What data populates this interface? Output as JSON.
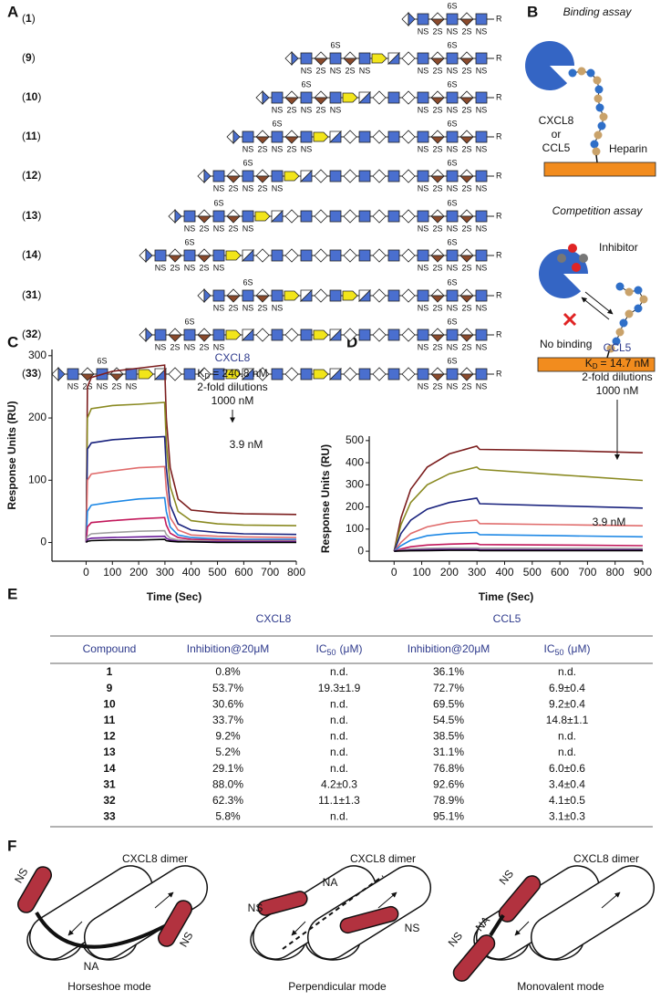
{
  "panel_labels": [
    "A",
    "B",
    "C",
    "D",
    "E",
    "F"
  ],
  "panel_a": {
    "paren_open": "(",
    "paren_close": ")",
    "compounds": [
      "1",
      "9",
      "10",
      "11",
      "12",
      "13",
      "14",
      "31",
      "32",
      "33"
    ],
    "ns": "NS",
    "two_s": "2S",
    "six_s": "6S",
    "r": "R"
  },
  "panel_b": {
    "binding_title": "Binding assay",
    "protein_1": "CXCL8",
    "or": "or",
    "protein_2": "CCL5",
    "heparin": "Heparin",
    "competition_title": "Competition assay",
    "inhibitor": "Inhibitor",
    "no_binding": "No binding"
  },
  "chart_data": [
    {
      "type": "line",
      "title": "CXCL8",
      "kd": {
        "symbol": "K",
        "subscript": "D",
        "text": "= 240.8 nM"
      },
      "annotations": [
        "2-fold dilutions",
        "1000 nM",
        "3.9 nM"
      ],
      "xlabel": "Time (Sec)",
      "ylabel": "Response Units (RU)",
      "x": [
        0,
        5,
        20,
        100,
        200,
        299,
        305,
        320,
        350,
        400,
        500,
        600,
        800
      ],
      "series": [
        {
          "color": "#7b1d1d",
          "values": [
            0,
            250,
            265,
            275,
            280,
            285,
            200,
            120,
            70,
            52,
            48,
            46,
            45
          ]
        },
        {
          "color": "#8a8a22",
          "values": [
            0,
            200,
            215,
            220,
            222,
            225,
            160,
            90,
            50,
            35,
            30,
            28,
            27
          ]
        },
        {
          "color": "#1a237e",
          "values": [
            0,
            150,
            160,
            165,
            168,
            170,
            120,
            60,
            30,
            20,
            16,
            14,
            13
          ]
        },
        {
          "color": "#e06c6c",
          "values": [
            0,
            100,
            110,
            115,
            120,
            122,
            85,
            40,
            20,
            12,
            10,
            9,
            8
          ]
        },
        {
          "color": "#1e88e5",
          "values": [
            0,
            50,
            60,
            65,
            70,
            72,
            50,
            25,
            12,
            8,
            6,
            5,
            5
          ]
        },
        {
          "color": "#c2185b",
          "values": [
            0,
            25,
            32,
            35,
            38,
            40,
            28,
            15,
            8,
            5,
            4,
            3,
            3
          ]
        },
        {
          "color": "#9e9e9e",
          "values": [
            0,
            10,
            14,
            16,
            18,
            19,
            13,
            7,
            4,
            3,
            2,
            2,
            2
          ]
        },
        {
          "color": "#6a1b9a",
          "values": [
            0,
            5,
            7,
            8,
            9,
            10,
            7,
            4,
            2,
            1,
            1,
            1,
            1
          ]
        },
        {
          "color": "#000000",
          "values": [
            0,
            2,
            3,
            4,
            4,
            5,
            3,
            2,
            1,
            1,
            0,
            0,
            0
          ]
        }
      ],
      "xlim": [
        -130,
        800
      ],
      "ylim": [
        -30,
        310
      ],
      "xticks": [
        0,
        100,
        200,
        300,
        400,
        500,
        600,
        700,
        800
      ],
      "yticks": [
        0,
        100,
        200,
        300
      ]
    },
    {
      "type": "line",
      "title": "CCL5",
      "kd": {
        "symbol": "K",
        "subscript": "D",
        "text": "= 14.7 nM"
      },
      "annotations": [
        "2-fold dilutions",
        "1000 nM",
        "3.9 nM"
      ],
      "xlabel": "Time (Sec)",
      "ylabel": "Response Units (RU)",
      "x": [
        0,
        25,
        60,
        120,
        200,
        299,
        310,
        600,
        900
      ],
      "series": [
        {
          "color": "#7b1d1d",
          "values": [
            0,
            150,
            280,
            380,
            440,
            475,
            460,
            455,
            445
          ]
        },
        {
          "color": "#8a8a22",
          "values": [
            0,
            120,
            220,
            300,
            350,
            380,
            370,
            345,
            320
          ]
        },
        {
          "color": "#1a237e",
          "values": [
            0,
            80,
            140,
            190,
            220,
            240,
            215,
            205,
            195
          ]
        },
        {
          "color": "#e06c6c",
          "values": [
            0,
            40,
            80,
            110,
            130,
            140,
            125,
            120,
            115
          ]
        },
        {
          "color": "#1e88e5",
          "values": [
            0,
            25,
            50,
            70,
            80,
            85,
            75,
            70,
            65
          ]
        },
        {
          "color": "#c2185b",
          "values": [
            0,
            10,
            20,
            28,
            32,
            35,
            30,
            28,
            25
          ]
        },
        {
          "color": "#9e9e9e",
          "values": [
            0,
            5,
            10,
            13,
            15,
            15,
            14,
            13,
            12
          ]
        },
        {
          "color": "#6a1b9a",
          "values": [
            0,
            3,
            5,
            7,
            8,
            8,
            7,
            6,
            6
          ]
        },
        {
          "color": "#000000",
          "values": [
            0,
            1,
            2,
            3,
            4,
            4,
            3,
            3,
            3
          ]
        }
      ],
      "xlim": [
        -90,
        900
      ],
      "ylim": [
        -45,
        520
      ],
      "xticks": [
        0,
        100,
        200,
        300,
        400,
        500,
        600,
        700,
        800,
        900
      ],
      "yticks": [
        0,
        100,
        200,
        300,
        400,
        500
      ]
    }
  ],
  "table": {
    "groups": [
      "CXCL8",
      "CCL5"
    ],
    "columns": [
      "Compound",
      "Inhibition@20μM",
      {
        "text": "IC",
        "sub": "50",
        "suffix": "(μM)"
      },
      "Inhibition@20μM",
      {
        "text": "IC",
        "sub": "50",
        "suffix": "(μM)"
      }
    ],
    "rows": [
      [
        "1",
        "0.8%",
        "n.d.",
        "36.1%",
        "n.d."
      ],
      [
        "9",
        "53.7%",
        "19.3±1.9",
        "72.7%",
        "6.9±0.4"
      ],
      [
        "10",
        "30.6%",
        "n.d.",
        "69.5%",
        "9.2±0.4"
      ],
      [
        "11",
        "33.7%",
        "n.d.",
        "54.5%",
        "14.8±1.1"
      ],
      [
        "12",
        "9.2%",
        "n.d.",
        "38.5%",
        "n.d."
      ],
      [
        "13",
        "5.2%",
        "n.d.",
        "31.1%",
        "n.d."
      ],
      [
        "14",
        "29.1%",
        "n.d.",
        "76.8%",
        "6.0±0.6"
      ],
      [
        "31",
        "88.0%",
        "4.2±0.3",
        "92.6%",
        "3.4±0.4"
      ],
      [
        "32",
        "62.3%",
        "11.1±1.3",
        "78.9%",
        "4.1±0.5"
      ],
      [
        "33",
        "5.8%",
        "n.d.",
        "95.1%",
        "3.1±0.3"
      ]
    ]
  },
  "panel_f": {
    "modes": [
      {
        "dimer": "CXCL8 dimer",
        "title": "Horseshoe mode",
        "labels": [
          "NS",
          "NS",
          "NA"
        ]
      },
      {
        "dimer": "CXCL8 dimer",
        "title": "Perpendicular mode",
        "labels": [
          "NS",
          "NA",
          "NS"
        ]
      },
      {
        "dimer": "CXCL8 dimer",
        "title": "Monovalent mode",
        "labels": [
          "NS",
          "NA",
          "NS"
        ]
      }
    ]
  }
}
